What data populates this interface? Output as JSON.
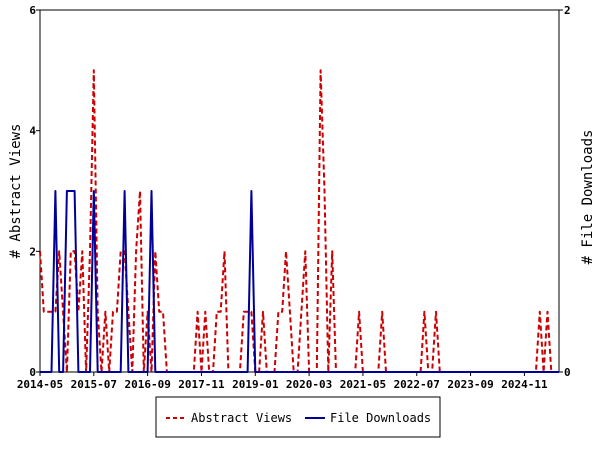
{
  "chart_data": {
    "type": "line",
    "ylabel": "# Abstract Views",
    "y2label": "# File Downloads",
    "x_ticks": [
      "2014-05",
      "2015-07",
      "2016-09",
      "2017-11",
      "2019-01",
      "2020-03",
      "2021-05",
      "2022-07",
      "2023-09",
      "2024-11"
    ],
    "x_range": [
      "2014-05",
      "2025-08"
    ],
    "ylim": [
      0,
      6
    ],
    "y_ticks": [
      "0",
      "2",
      "4",
      "6"
    ],
    "y2lim": [
      0,
      2
    ],
    "y2_ticks": [
      "0",
      "2"
    ],
    "legend_position": "bottom",
    "grid": false,
    "series": [
      {
        "name": "Abstract Views",
        "axis": "left",
        "color": "#cc0000",
        "style": "dashed",
        "points": [
          [
            "2014-05",
            2
          ],
          [
            "2014-06",
            1
          ],
          [
            "2014-07",
            1
          ],
          [
            "2014-08",
            1
          ],
          [
            "2014-09",
            1
          ],
          [
            "2014-10",
            2
          ],
          [
            "2014-11",
            1
          ],
          [
            "2014-12",
            0
          ],
          [
            "2015-01",
            2
          ],
          [
            "2015-02",
            2
          ],
          [
            "2015-03",
            1
          ],
          [
            "2015-04",
            2
          ],
          [
            "2015-05",
            0
          ],
          [
            "2015-06",
            2
          ],
          [
            "2015-07",
            5
          ],
          [
            "2015-08",
            1
          ],
          [
            "2015-09",
            0
          ],
          [
            "2015-10",
            1
          ],
          [
            "2015-11",
            0
          ],
          [
            "2015-12",
            1
          ],
          [
            "2016-01",
            1
          ],
          [
            "2016-02",
            2
          ],
          [
            "2016-03",
            2
          ],
          [
            "2016-04",
            1
          ],
          [
            "2016-05",
            0
          ],
          [
            "2016-06",
            2
          ],
          [
            "2016-07",
            3
          ],
          [
            "2016-08",
            0
          ],
          [
            "2016-09",
            1
          ],
          [
            "2016-10",
            0
          ],
          [
            "2016-11",
            2
          ],
          [
            "2016-12",
            1
          ],
          [
            "2017-01",
            1
          ],
          [
            "2017-02",
            0
          ],
          [
            "2017-03",
            0
          ],
          [
            "2017-04",
            0
          ],
          [
            "2017-05",
            0
          ],
          [
            "2017-06",
            0
          ],
          [
            "2017-07",
            0
          ],
          [
            "2017-08",
            0
          ],
          [
            "2017-09",
            0
          ],
          [
            "2017-10",
            1
          ],
          [
            "2017-11",
            0
          ],
          [
            "2017-12",
            1
          ],
          [
            "2018-01",
            0
          ],
          [
            "2018-02",
            0
          ],
          [
            "2018-03",
            1
          ],
          [
            "2018-04",
            1
          ],
          [
            "2018-05",
            2
          ],
          [
            "2018-06",
            0
          ],
          [
            "2018-07",
            0
          ],
          [
            "2018-08",
            0
          ],
          [
            "2018-09",
            0
          ],
          [
            "2018-10",
            1
          ],
          [
            "2018-11",
            1
          ],
          [
            "2018-12",
            1
          ],
          [
            "2019-01",
            0
          ],
          [
            "2019-02",
            0
          ],
          [
            "2019-03",
            1
          ],
          [
            "2019-04",
            0
          ],
          [
            "2019-05",
            0
          ],
          [
            "2019-06",
            0
          ],
          [
            "2019-07",
            1
          ],
          [
            "2019-08",
            1
          ],
          [
            "2019-09",
            2
          ],
          [
            "2019-10",
            1
          ],
          [
            "2019-11",
            0
          ],
          [
            "2019-12",
            0
          ],
          [
            "2020-01",
            1
          ],
          [
            "2020-02",
            2
          ],
          [
            "2020-03",
            0
          ],
          [
            "2020-04",
            0
          ],
          [
            "2020-05",
            0
          ],
          [
            "2020-06",
            5
          ],
          [
            "2020-07",
            3
          ],
          [
            "2020-08",
            0
          ],
          [
            "2020-09",
            2
          ],
          [
            "2020-10",
            0
          ],
          [
            "2020-11",
            0
          ],
          [
            "2020-12",
            0
          ],
          [
            "2021-01",
            0
          ],
          [
            "2021-02",
            0
          ],
          [
            "2021-03",
            0
          ],
          [
            "2021-04",
            1
          ],
          [
            "2021-05",
            0
          ],
          [
            "2021-06",
            0
          ],
          [
            "2021-07",
            0
          ],
          [
            "2021-08",
            0
          ],
          [
            "2021-09",
            0
          ],
          [
            "2021-10",
            1
          ],
          [
            "2021-11",
            0
          ],
          [
            "2021-12",
            0
          ],
          [
            "2022-01",
            0
          ],
          [
            "2022-02",
            0
          ],
          [
            "2022-03",
            0
          ],
          [
            "2022-04",
            0
          ],
          [
            "2022-05",
            0
          ],
          [
            "2022-06",
            0
          ],
          [
            "2022-07",
            0
          ],
          [
            "2022-08",
            0
          ],
          [
            "2022-09",
            1
          ],
          [
            "2022-10",
            0
          ],
          [
            "2022-11",
            0
          ],
          [
            "2022-12",
            1
          ],
          [
            "2023-01",
            0
          ],
          [
            "2023-02",
            0
          ],
          [
            "2023-03",
            0
          ],
          [
            "2023-04",
            0
          ],
          [
            "2023-05",
            0
          ],
          [
            "2023-06",
            0
          ],
          [
            "2023-07",
            0
          ],
          [
            "2023-08",
            0
          ],
          [
            "2023-09",
            0
          ],
          [
            "2023-10",
            0
          ],
          [
            "2023-11",
            0
          ],
          [
            "2023-12",
            0
          ],
          [
            "2024-01",
            0
          ],
          [
            "2024-02",
            0
          ],
          [
            "2024-03",
            0
          ],
          [
            "2024-04",
            0
          ],
          [
            "2024-05",
            0
          ],
          [
            "2024-06",
            0
          ],
          [
            "2024-07",
            0
          ],
          [
            "2024-08",
            0
          ],
          [
            "2024-09",
            0
          ],
          [
            "2024-10",
            0
          ],
          [
            "2024-11",
            0
          ],
          [
            "2024-12",
            0
          ],
          [
            "2025-01",
            0
          ],
          [
            "2025-02",
            0
          ],
          [
            "2025-03",
            1
          ],
          [
            "2025-04",
            0
          ],
          [
            "2025-05",
            1
          ],
          [
            "2025-06",
            0
          ],
          [
            "2025-07",
            0
          ],
          [
            "2025-08",
            0
          ]
        ]
      },
      {
        "name": "File Downloads",
        "axis": "right",
        "color": "#000099",
        "style": "solid",
        "points": [
          [
            "2014-05",
            0
          ],
          [
            "2014-06",
            0
          ],
          [
            "2014-07",
            0
          ],
          [
            "2014-08",
            0
          ],
          [
            "2014-09",
            1
          ],
          [
            "2014-10",
            0
          ],
          [
            "2014-11",
            0
          ],
          [
            "2014-12",
            1
          ],
          [
            "2015-01",
            1
          ],
          [
            "2015-02",
            1
          ],
          [
            "2015-03",
            0
          ],
          [
            "2015-04",
            0
          ],
          [
            "2015-05",
            0
          ],
          [
            "2015-06",
            0
          ],
          [
            "2015-07",
            1
          ],
          [
            "2015-08",
            0
          ],
          [
            "2015-09",
            0
          ],
          [
            "2015-10",
            0
          ],
          [
            "2015-11",
            0
          ],
          [
            "2015-12",
            0
          ],
          [
            "2016-01",
            0
          ],
          [
            "2016-02",
            0
          ],
          [
            "2016-03",
            1
          ],
          [
            "2016-04",
            0
          ],
          [
            "2016-05",
            0
          ],
          [
            "2016-06",
            0
          ],
          [
            "2016-07",
            0
          ],
          [
            "2016-08",
            0
          ],
          [
            "2016-09",
            0
          ],
          [
            "2016-10",
            1
          ],
          [
            "2016-11",
            0
          ],
          [
            "2016-12",
            0
          ],
          [
            "2017-01",
            0
          ],
          [
            "2017-02",
            0
          ],
          [
            "2017-03",
            0
          ],
          [
            "2017-04",
            0
          ],
          [
            "2017-05",
            0
          ],
          [
            "2017-06",
            0
          ],
          [
            "2017-07",
            0
          ],
          [
            "2017-08",
            0
          ],
          [
            "2017-09",
            0
          ],
          [
            "2017-10",
            0
          ],
          [
            "2017-11",
            0
          ],
          [
            "2017-12",
            0
          ],
          [
            "2018-01",
            0
          ],
          [
            "2018-02",
            0
          ],
          [
            "2018-03",
            0
          ],
          [
            "2018-04",
            0
          ],
          [
            "2018-05",
            0
          ],
          [
            "2018-06",
            0
          ],
          [
            "2018-07",
            0
          ],
          [
            "2018-08",
            0
          ],
          [
            "2018-09",
            0
          ],
          [
            "2018-10",
            0
          ],
          [
            "2018-11",
            0
          ],
          [
            "2018-12",
            1
          ],
          [
            "2019-01",
            0
          ],
          [
            "2019-02",
            0
          ],
          [
            "2019-03",
            0
          ],
          [
            "2019-04",
            0
          ],
          [
            "2019-05",
            0
          ],
          [
            "2019-06",
            0
          ],
          [
            "2019-07",
            0
          ],
          [
            "2019-08",
            0
          ],
          [
            "2019-09",
            0
          ],
          [
            "2019-10",
            0
          ],
          [
            "2019-11",
            0
          ],
          [
            "2019-12",
            0
          ],
          [
            "2020-01",
            0
          ],
          [
            "2020-02",
            0
          ],
          [
            "2020-03",
            0
          ],
          [
            "2020-04",
            0
          ],
          [
            "2020-05",
            0
          ],
          [
            "2020-06",
            0
          ],
          [
            "2020-07",
            0
          ],
          [
            "2020-08",
            0
          ],
          [
            "2020-09",
            0
          ],
          [
            "2020-10",
            0
          ],
          [
            "2020-11",
            0
          ],
          [
            "2020-12",
            0
          ],
          [
            "2021-01",
            0
          ],
          [
            "2021-02",
            0
          ],
          [
            "2021-03",
            0
          ],
          [
            "2021-04",
            0
          ],
          [
            "2021-05",
            0
          ],
          [
            "2021-06",
            0
          ],
          [
            "2021-07",
            0
          ],
          [
            "2021-08",
            0
          ],
          [
            "2021-09",
            0
          ],
          [
            "2021-10",
            0
          ],
          [
            "2021-11",
            0
          ],
          [
            "2021-12",
            0
          ],
          [
            "2022-01",
            0
          ],
          [
            "2022-02",
            0
          ],
          [
            "2022-03",
            0
          ],
          [
            "2022-04",
            0
          ],
          [
            "2022-05",
            0
          ],
          [
            "2022-06",
            0
          ],
          [
            "2022-07",
            0
          ],
          [
            "2022-08",
            0
          ],
          [
            "2022-09",
            0
          ],
          [
            "2022-10",
            0
          ],
          [
            "2022-11",
            0
          ],
          [
            "2022-12",
            0
          ],
          [
            "2023-01",
            0
          ],
          [
            "2023-02",
            0
          ],
          [
            "2023-03",
            0
          ],
          [
            "2023-04",
            0
          ],
          [
            "2023-05",
            0
          ],
          [
            "2023-06",
            0
          ],
          [
            "2023-07",
            0
          ],
          [
            "2023-08",
            0
          ],
          [
            "2023-09",
            0
          ],
          [
            "2023-10",
            0
          ],
          [
            "2023-11",
            0
          ],
          [
            "2023-12",
            0
          ],
          [
            "2024-01",
            0
          ],
          [
            "2024-02",
            0
          ],
          [
            "2024-03",
            0
          ],
          [
            "2024-04",
            0
          ],
          [
            "2024-05",
            0
          ],
          [
            "2024-06",
            0
          ],
          [
            "2024-07",
            0
          ],
          [
            "2024-08",
            0
          ],
          [
            "2024-09",
            0
          ],
          [
            "2024-10",
            0
          ],
          [
            "2024-11",
            0
          ],
          [
            "2024-12",
            0
          ],
          [
            "2025-01",
            0
          ],
          [
            "2025-02",
            0
          ],
          [
            "2025-03",
            0
          ],
          [
            "2025-04",
            0
          ],
          [
            "2025-05",
            0
          ],
          [
            "2025-06",
            0
          ],
          [
            "2025-07",
            0
          ],
          [
            "2025-08",
            0
          ]
        ]
      }
    ]
  }
}
